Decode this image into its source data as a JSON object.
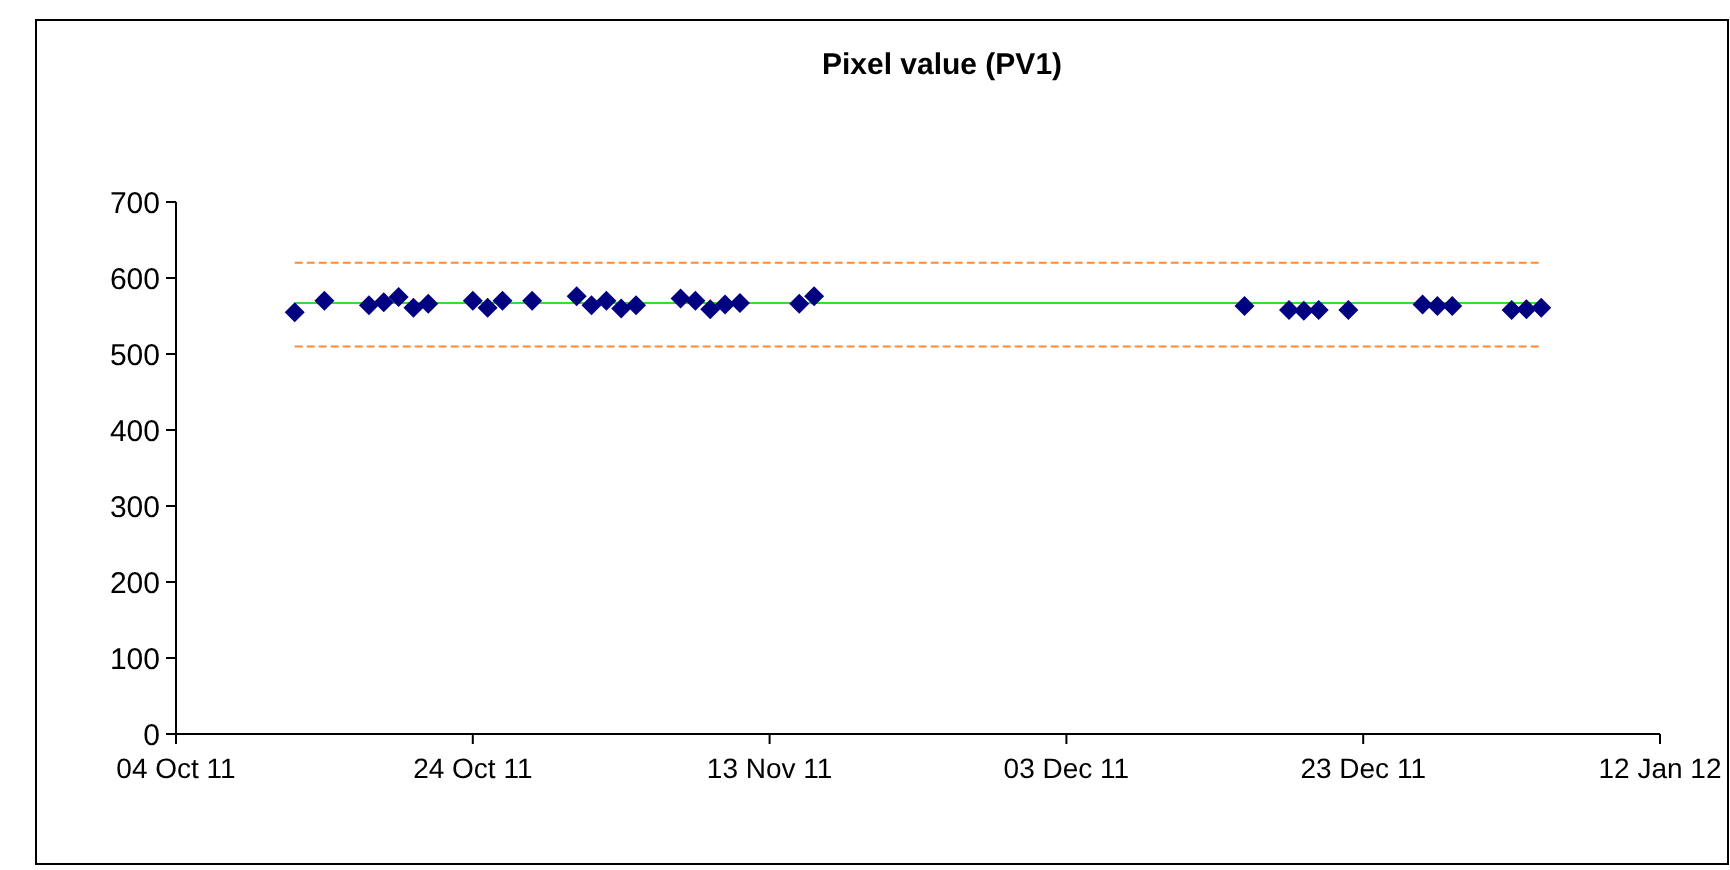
{
  "chart_data": {
    "type": "scatter",
    "title": "Pixel value (PV1)",
    "marker": "diamond",
    "x": [
      "2011-10-12",
      "2011-10-14",
      "2011-10-17",
      "2011-10-18",
      "2011-10-19",
      "2011-10-20",
      "2011-10-21",
      "2011-10-24",
      "2011-10-25",
      "2011-10-26",
      "2011-10-28",
      "2011-10-31",
      "2011-11-01",
      "2011-11-02",
      "2011-11-03",
      "2011-11-04",
      "2011-11-07",
      "2011-11-08",
      "2011-11-09",
      "2011-11-10",
      "2011-11-11",
      "2011-11-15",
      "2011-11-16",
      "2011-12-15",
      "2011-12-18",
      "2011-12-19",
      "2011-12-20",
      "2011-12-22",
      "2011-12-27",
      "2011-12-28",
      "2011-12-29",
      "2012-01-02",
      "2012-01-03",
      "2012-01-04"
    ],
    "series": [
      {
        "color": "#000080",
        "values": [
          555,
          570,
          564,
          568,
          575,
          561,
          566,
          570,
          561,
          570,
          570,
          576,
          564,
          570,
          560,
          564,
          573,
          570,
          559,
          565,
          567,
          566,
          576,
          563,
          558,
          557,
          558,
          558,
          565,
          563,
          563,
          558,
          559,
          561
        ]
      }
    ],
    "ref_lines": [
      {
        "axis": "y",
        "value": 620,
        "color": "#ff8c33",
        "line_style": "dashed"
      },
      {
        "axis": "y",
        "value": 567,
        "color": "#33dd33",
        "line_style": "solid"
      },
      {
        "axis": "y",
        "value": 510,
        "color": "#ff8c33",
        "line_style": "dashed"
      }
    ],
    "xlim": [
      "2011-10-04",
      "2012-01-12"
    ],
    "xticks": [
      {
        "value": "2011-10-04",
        "label": "04 Oct 11"
      },
      {
        "value": "2011-10-24",
        "label": "24 Oct 11"
      },
      {
        "value": "2011-11-13",
        "label": "13 Nov 11"
      },
      {
        "value": "2011-12-03",
        "label": "03 Dec 11"
      },
      {
        "value": "2011-12-23",
        "label": "23 Dec 11"
      },
      {
        "value": "2012-01-12",
        "label": "12 Jan 12"
      }
    ],
    "ylim": [
      0,
      700
    ],
    "yticks": [
      0,
      100,
      200,
      300,
      400,
      500,
      600,
      700
    ]
  }
}
